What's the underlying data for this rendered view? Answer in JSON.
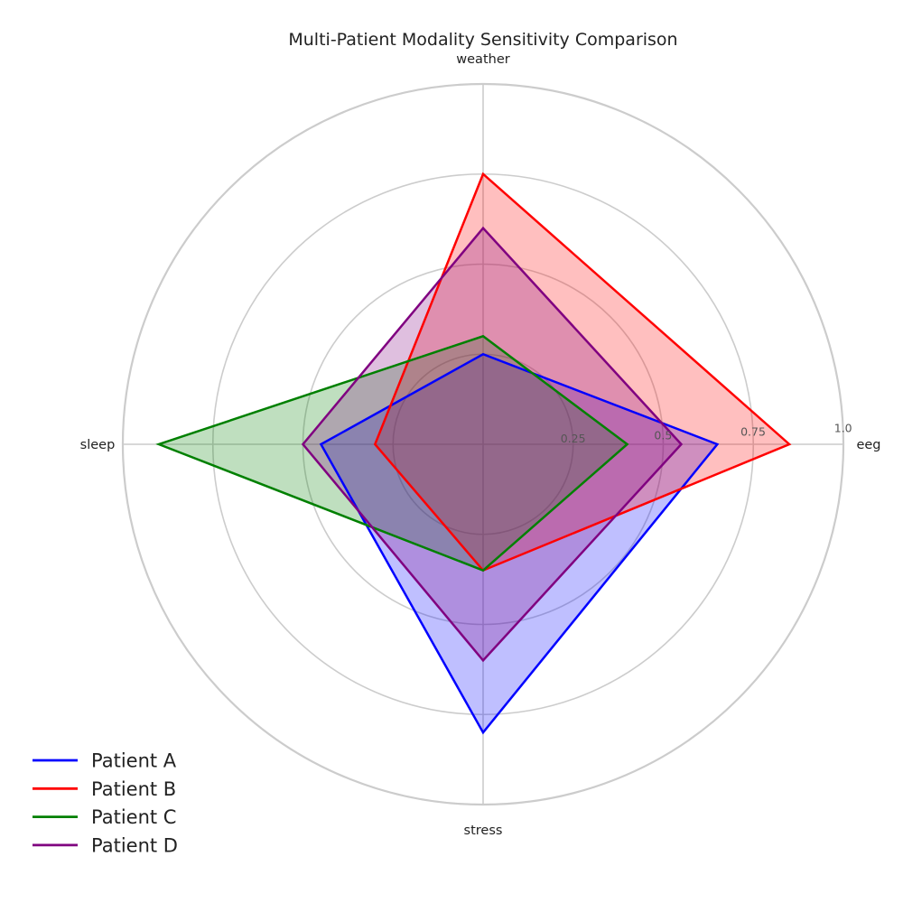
{
  "chart_data": {
    "type": "radar",
    "title": "Multi-Patient Modality Sensitivity Comparison",
    "axes": [
      "eeg",
      "weather",
      "sleep",
      "stress"
    ],
    "rlim": [
      0,
      1.0
    ],
    "r_ticks": [
      {
        "value": 0.25,
        "label": "0.25"
      },
      {
        "value": 0.5,
        "label": "0.5"
      },
      {
        "value": 0.75,
        "label": "0.75"
      },
      {
        "value": 1.0,
        "label": "1.0"
      }
    ],
    "grid": true,
    "legend_position": "bottom-left",
    "series": [
      {
        "name": "Patient A",
        "color": "#0000ff",
        "values": [
          0.65,
          0.25,
          0.45,
          0.8
        ]
      },
      {
        "name": "Patient B",
        "color": "#ff0000",
        "values": [
          0.85,
          0.75,
          0.3,
          0.35
        ]
      },
      {
        "name": "Patient C",
        "color": "#008000",
        "values": [
          0.4,
          0.3,
          0.9,
          0.35
        ]
      },
      {
        "name": "Patient D",
        "color": "#800080",
        "values": [
          0.55,
          0.6,
          0.5,
          0.6
        ]
      }
    ]
  }
}
